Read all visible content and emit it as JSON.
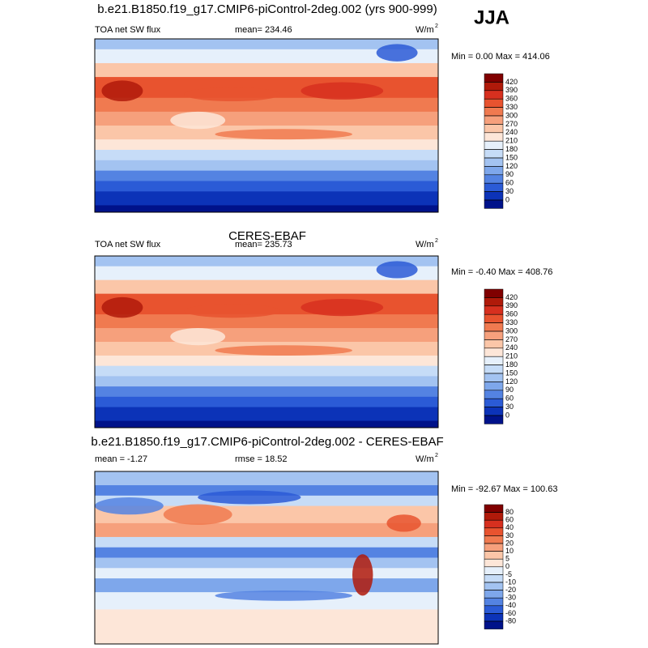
{
  "season": "JJA",
  "chart_data": [
    {
      "type": "map",
      "title": "b.e21.B1850.f19_g17.CMIP6-piControl-2deg.002 (yrs 900-999)",
      "left_label": "TOA net SW flux",
      "center_label": "mean= 234.46",
      "units": "W/m",
      "units_sup": "2",
      "min_max": "Min =   0.00 Max = 414.06",
      "levels": [
        420,
        390,
        360,
        330,
        300,
        270,
        240,
        210,
        180,
        150,
        120,
        90,
        60,
        30,
        0
      ],
      "colors": [
        "#800000",
        "#b01a0a",
        "#d7301f",
        "#e8532f",
        "#f07a50",
        "#f6a07c",
        "#fbc6a8",
        "#fde6d8",
        "#e6f0fb",
        "#c6dcf7",
        "#a3c3f1",
        "#7ea7eb",
        "#5483e2",
        "#2b5bd6",
        "#0c33b8",
        "#00128a"
      ]
    },
    {
      "type": "map",
      "title": "CERES-EBAF",
      "left_label": "TOA net SW flux",
      "center_label": "mean= 235.73",
      "units": "W/m",
      "units_sup": "2",
      "min_max": "Min =  -0.40 Max = 408.76",
      "levels": [
        420,
        390,
        360,
        330,
        300,
        270,
        240,
        210,
        180,
        150,
        120,
        90,
        60,
        30,
        0
      ],
      "colors": [
        "#800000",
        "#b01a0a",
        "#d7301f",
        "#e8532f",
        "#f07a50",
        "#f6a07c",
        "#fbc6a8",
        "#fde6d8",
        "#e6f0fb",
        "#c6dcf7",
        "#a3c3f1",
        "#7ea7eb",
        "#5483e2",
        "#2b5bd6",
        "#0c33b8",
        "#00128a"
      ]
    },
    {
      "type": "diff-map",
      "title": "b.e21.B1850.f19_g17.CMIP6-piControl-2deg.002 - CERES-EBAF",
      "left_label": "mean =  -1.27",
      "center_label": "rmse =  18.52",
      "units": "W/m",
      "units_sup": "2",
      "min_max": "Min = -92.67 Max = 100.63",
      "levels": [
        80,
        60,
        40,
        30,
        20,
        10,
        5,
        0,
        -5,
        -10,
        -20,
        -30,
        -40,
        -60,
        -80
      ],
      "colors": [
        "#800000",
        "#b01a0a",
        "#d7301f",
        "#e8532f",
        "#f07a50",
        "#f6a07c",
        "#fbc6a8",
        "#fde6d8",
        "#e6f0fb",
        "#c6dcf7",
        "#a3c3f1",
        "#7ea7eb",
        "#5483e2",
        "#2b5bd6",
        "#0c33b8",
        "#00128a"
      ]
    }
  ]
}
